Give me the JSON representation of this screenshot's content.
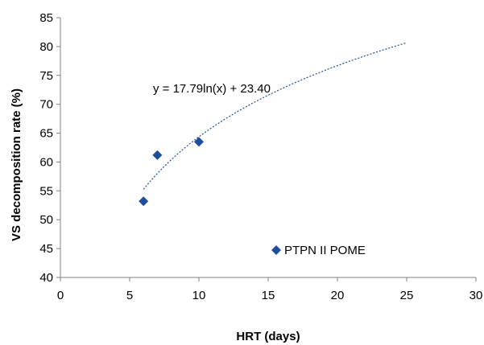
{
  "chart_data": {
    "type": "scatter",
    "xlabel": "HRT (days)",
    "ylabel": "VS decomposition rate (%)",
    "xlim": [
      0,
      30
    ],
    "ylim": [
      40,
      85
    ],
    "x_ticks": [
      0,
      5,
      10,
      15,
      20,
      25,
      30
    ],
    "y_ticks": [
      40,
      45,
      50,
      55,
      60,
      65,
      70,
      75,
      80,
      85
    ],
    "grid": false,
    "legend_position": "inside-bottom-right",
    "series": [
      {
        "name": "PTPN II POME",
        "marker": "diamond",
        "color": "#1f4e9c",
        "x": [
          6,
          7,
          10
        ],
        "y": [
          53.2,
          61.2,
          63.5
        ]
      }
    ],
    "trendline": {
      "type": "logarithmic",
      "equation_label": "y = 17.79ln(x) + 23.40",
      "a": 17.79,
      "b": 23.4,
      "x_range": [
        6,
        25
      ],
      "color": "#1f4e9c",
      "style": "dotted"
    }
  }
}
